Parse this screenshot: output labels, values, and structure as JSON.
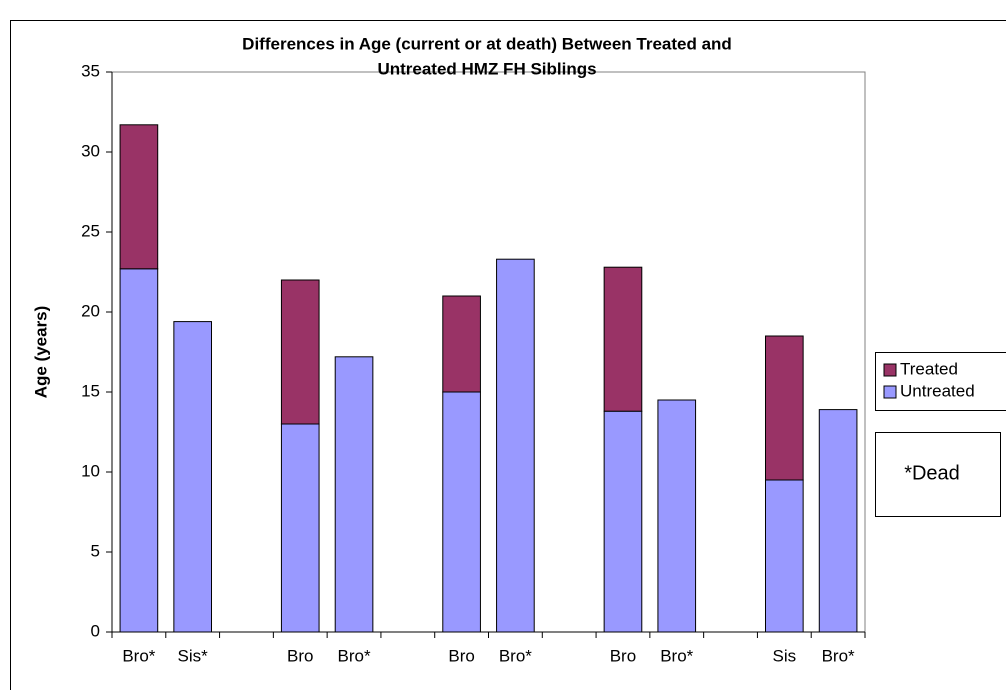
{
  "chart_data": {
    "type": "stacked-bar",
    "title": [
      "Differences in Age (current or at death) Between Treated and",
      "Untreated HMZ FH Siblings"
    ],
    "y_label": "Age (years)",
    "categories": [
      "Bro*",
      "Sis*",
      null,
      "Bro",
      "Bro*",
      null,
      "Bro",
      "Bro*",
      null,
      "Bro",
      "Bro*",
      null,
      "Sis",
      "Bro*"
    ],
    "series": [
      {
        "name": "Untreated",
        "color": "#9999ff",
        "values": [
          22.7,
          19.4,
          null,
          13,
          17.2,
          null,
          15,
          23.3,
          null,
          13.8,
          14.5,
          null,
          9.5,
          13.9
        ]
      },
      {
        "name": "Treated",
        "color": "#993366",
        "values": [
          9,
          null,
          null,
          9,
          null,
          null,
          6,
          null,
          null,
          9,
          null,
          null,
          9,
          null
        ]
      }
    ],
    "ylim": [
      0,
      35
    ],
    "yticks": [
      0,
      5,
      10,
      15,
      20,
      25,
      30,
      35
    ],
    "annotation": "*Dead",
    "grid": false
  }
}
